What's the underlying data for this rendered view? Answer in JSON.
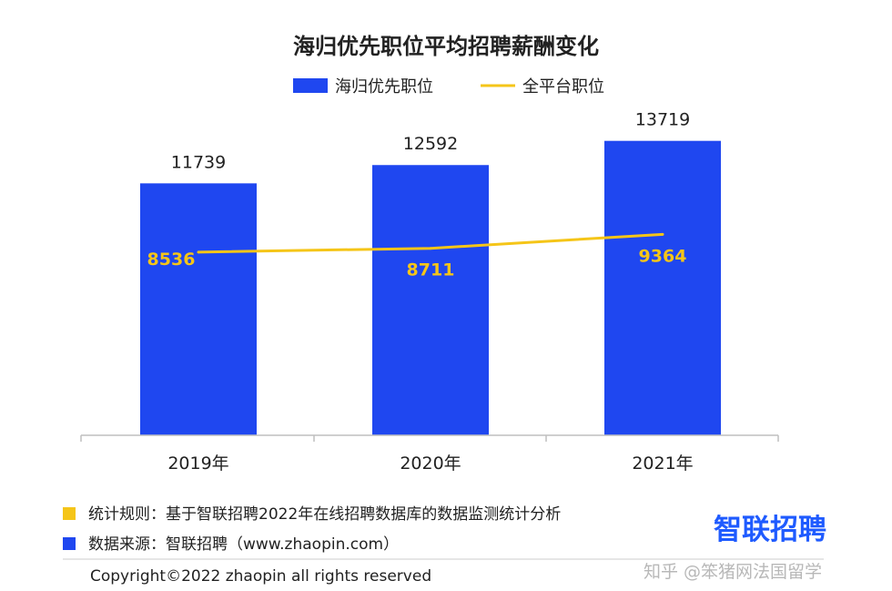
{
  "chart_data": {
    "type": "bar",
    "title": "海归优先职位平均招聘薪酬变化",
    "categories": [
      "2019年",
      "2020年",
      "2021年"
    ],
    "series": [
      {
        "name": "海归优先职位",
        "type": "bar",
        "color": "#1f47f0",
        "values": [
          11739,
          12592,
          13719
        ]
      },
      {
        "name": "全平台职位",
        "type": "line",
        "color": "#f5c518",
        "values": [
          8536,
          8711,
          9364
        ]
      }
    ],
    "ylim": [
      0,
      15700
    ],
    "grid": false,
    "legend_position": "top-center"
  },
  "footer": {
    "rule_text": "统计规则：基于智联招聘2022年在线招聘数据库的数据监测统计分析",
    "rule_color": "#f5c518",
    "source_text": "数据来源：智联招聘（www.zhaopin.com）",
    "source_color": "#1f47f0",
    "copyright": "Copyright©2022 zhaopin all rights reserved",
    "brand": "智联招聘",
    "watermark": "知乎 @笨猪网法国留学"
  }
}
